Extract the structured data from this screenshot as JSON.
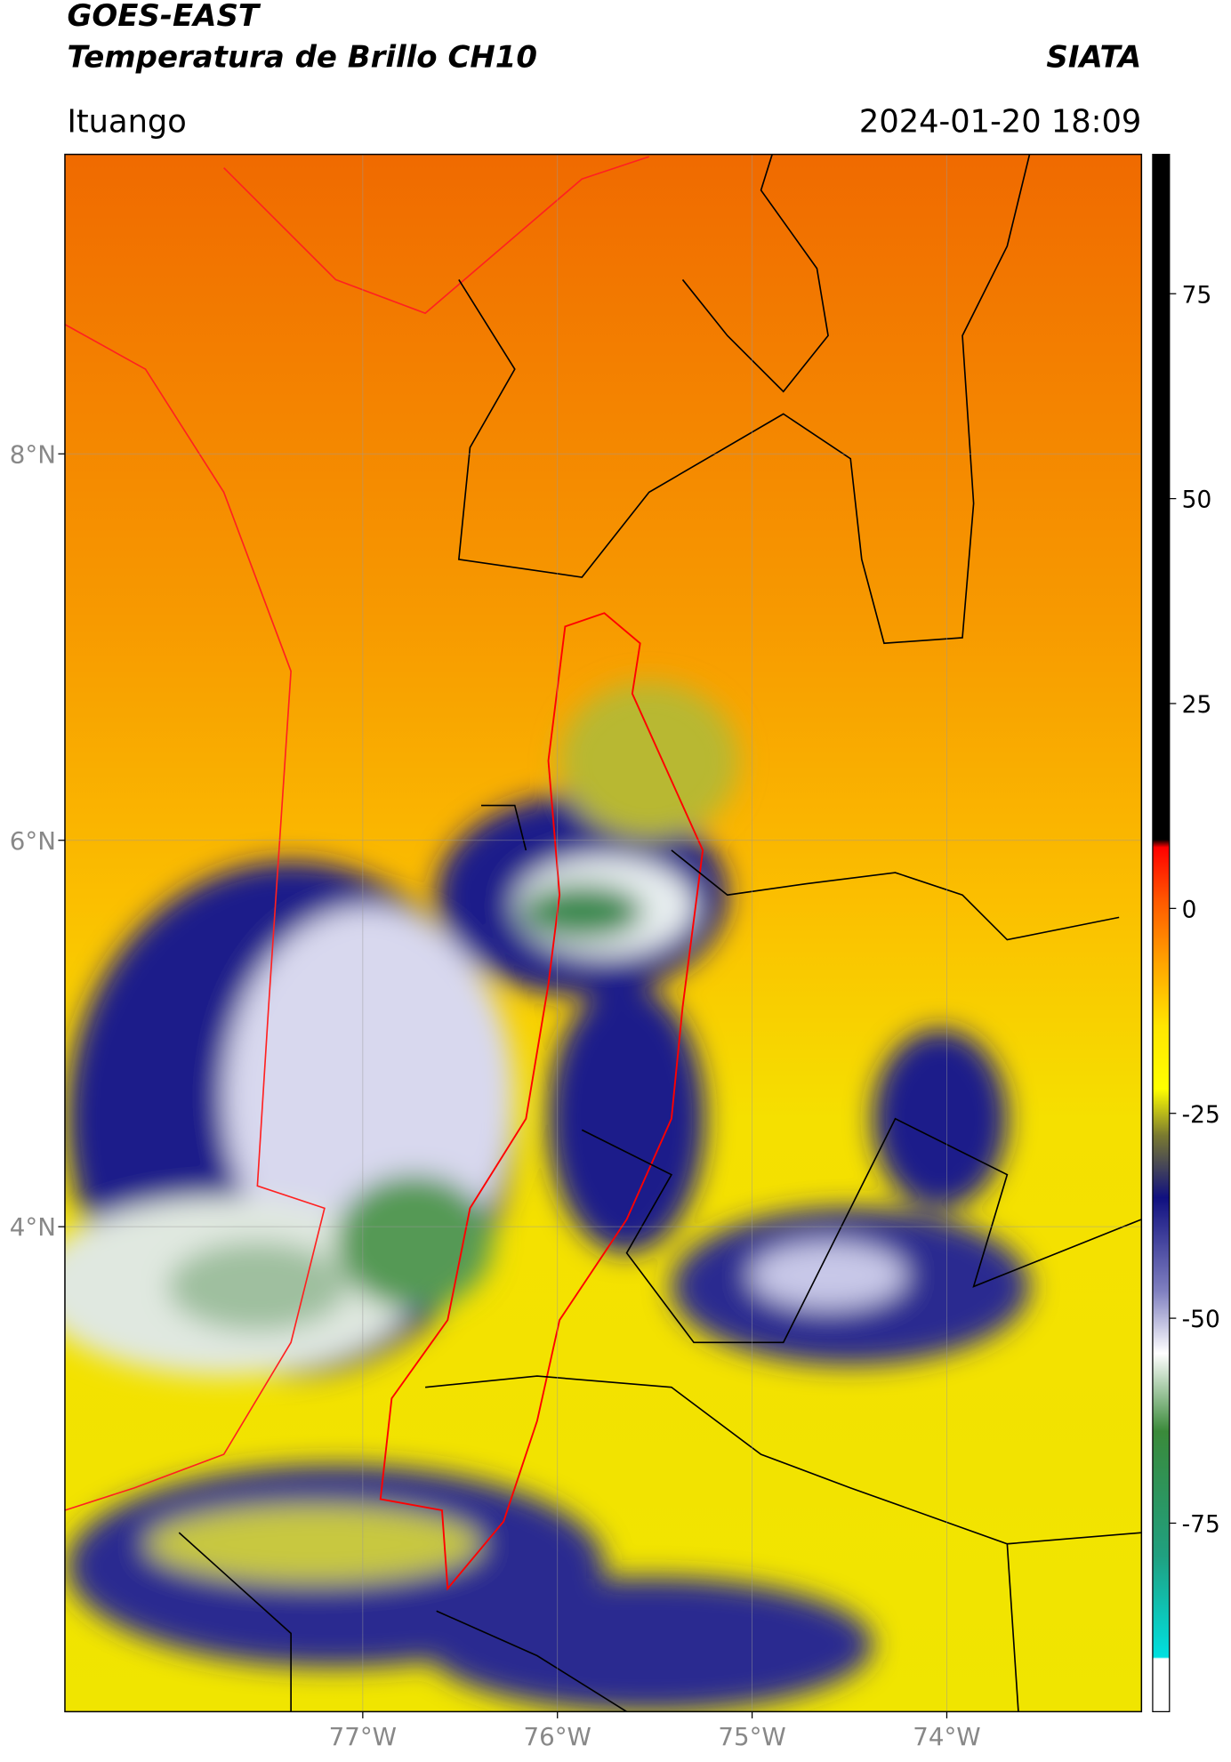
{
  "header": {
    "source": "GOES-EAST",
    "product": "Temperatura de Brillo CH10",
    "brand": "SIATA",
    "location": "Ituango",
    "timestamp": "2024-01-20 18:09"
  },
  "map": {
    "xlim": [
      -78.53,
      -73.0
    ],
    "ylim": [
      1.49,
      9.55
    ],
    "xticks": [
      {
        "value": -77,
        "label": "77°W"
      },
      {
        "value": -76,
        "label": "76°W"
      },
      {
        "value": -75,
        "label": "75°W"
      },
      {
        "value": -74,
        "label": "74°W"
      }
    ],
    "yticks": [
      {
        "value": 8,
        "label": "8°N"
      },
      {
        "value": 6,
        "label": "6°N"
      },
      {
        "value": 4,
        "label": "4°N"
      }
    ],
    "grid": true
  },
  "colorbar": {
    "lim": [
      -98,
      92
    ],
    "ticks": [
      75,
      50,
      25,
      0,
      -25,
      -50,
      -75
    ]
  }
}
